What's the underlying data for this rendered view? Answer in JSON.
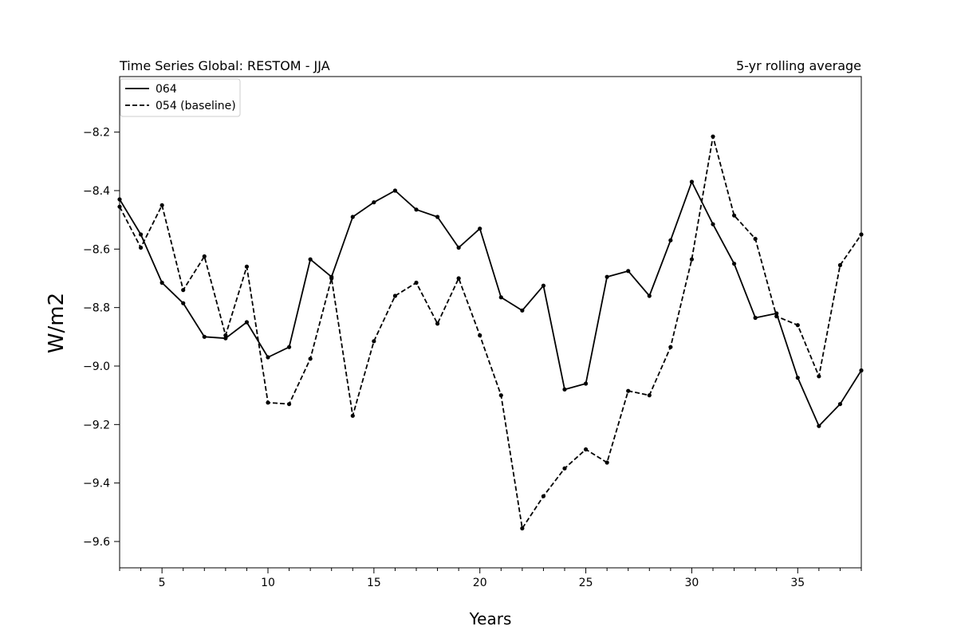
{
  "chart_data": {
    "type": "line",
    "title": "Time Series Global: RESTOM - JJA",
    "subtitle": "5-yr rolling average",
    "xlabel": "Years",
    "ylabel": "W/m2",
    "xlim": [
      3,
      38
    ],
    "ylim": [
      -9.69,
      -8.01
    ],
    "xticks": [
      5,
      10,
      15,
      20,
      25,
      30,
      35
    ],
    "yticks": [
      -9.6,
      -9.4,
      -9.2,
      -9.0,
      -8.8,
      -8.6,
      -8.4,
      -8.2
    ],
    "legend_position": "top-left",
    "grid": false,
    "x": [
      3,
      4,
      5,
      6,
      7,
      8,
      9,
      10,
      11,
      12,
      13,
      14,
      15,
      16,
      17,
      18,
      19,
      20,
      21,
      22,
      23,
      24,
      25,
      26,
      27,
      28,
      29,
      30,
      31,
      32,
      33,
      34,
      35,
      36,
      37,
      38
    ],
    "series": [
      {
        "name": "064",
        "line_style": "solid",
        "color": "#000000",
        "values": [
          -8.43,
          -8.55,
          -8.715,
          -8.785,
          -8.9,
          -8.905,
          -8.85,
          -8.97,
          -8.935,
          -8.635,
          -8.695,
          -8.49,
          -8.44,
          -8.4,
          -8.465,
          -8.49,
          -8.595,
          -8.53,
          -8.765,
          -8.81,
          -8.725,
          -9.08,
          -9.06,
          -8.695,
          -8.675,
          -8.76,
          -8.57,
          -8.37,
          -8.515,
          -8.65,
          -8.835,
          -8.82,
          -9.04,
          -9.205,
          -9.13,
          -9.015
        ]
      },
      {
        "name": "054 (baseline)",
        "line_style": "dashed",
        "color": "#000000",
        "values": [
          -8.455,
          -8.595,
          -8.45,
          -8.74,
          -8.625,
          -8.895,
          -8.66,
          -9.125,
          -9.13,
          -8.975,
          -8.7,
          -9.17,
          -8.915,
          -8.76,
          -8.715,
          -8.855,
          -8.7,
          -8.895,
          -9.1,
          -9.555,
          -9.445,
          -9.35,
          -9.285,
          -9.33,
          -9.085,
          -9.1,
          -8.935,
          -8.635,
          -8.215,
          -8.485,
          -8.565,
          -8.83,
          -8.86,
          -9.035,
          -8.655,
          -8.55
        ]
      }
    ]
  }
}
